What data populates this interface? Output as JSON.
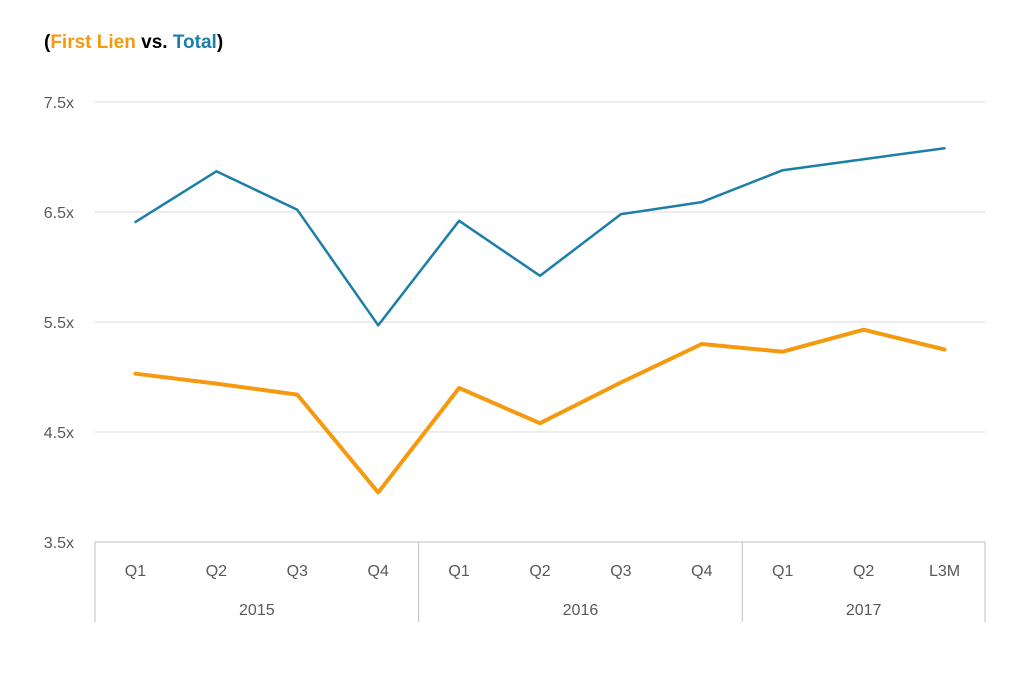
{
  "title": {
    "open": "(",
    "series1": "First Lien",
    "mid": " vs. ",
    "series2": "Total",
    "close": ")"
  },
  "chart_data": {
    "type": "line",
    "categories": [
      "Q1",
      "Q2",
      "Q3",
      "Q4",
      "Q1",
      "Q2",
      "Q3",
      "Q4",
      "Q1",
      "Q2",
      "L3M"
    ],
    "groups": [
      {
        "label": "2015",
        "count": 4
      },
      {
        "label": "2016",
        "count": 4
      },
      {
        "label": "2017",
        "count": 3
      }
    ],
    "series": [
      {
        "name": "First Lien",
        "color": "#F59A0E",
        "values": [
          5.03,
          4.94,
          4.84,
          3.95,
          4.9,
          4.58,
          4.95,
          5.3,
          5.23,
          5.43,
          5.25
        ]
      },
      {
        "name": "Total",
        "color": "#1B7FA8",
        "values": [
          6.41,
          6.87,
          6.52,
          5.47,
          6.42,
          5.92,
          6.48,
          6.59,
          6.88,
          6.98,
          7.08
        ]
      }
    ],
    "yticks": [
      "7.5x",
      "6.5x",
      "5.5x",
      "4.5x",
      "3.5x"
    ],
    "ytick_values": [
      7.5,
      6.5,
      5.5,
      4.5,
      3.5
    ],
    "ylim": [
      3.5,
      7.5
    ],
    "grid": true
  }
}
